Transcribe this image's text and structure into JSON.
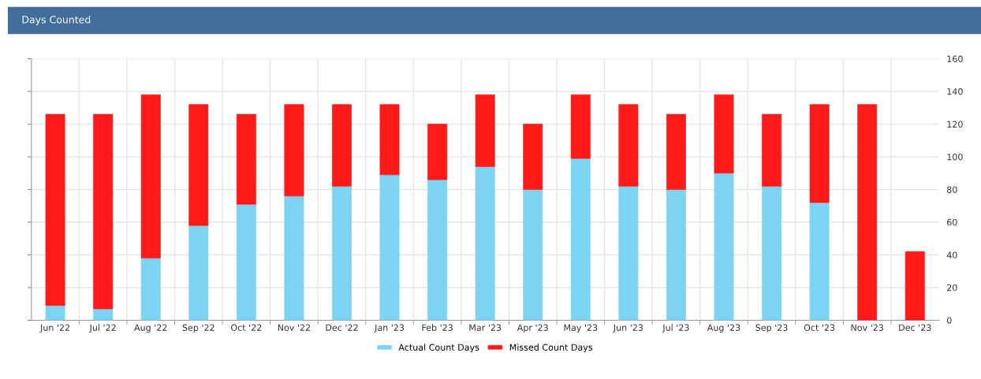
{
  "chart_data": {
    "type": "bar",
    "title": "Days Counted",
    "stacked": true,
    "categories": [
      "Jun '22",
      "Jul '22",
      "Aug '22",
      "Sep '22",
      "Oct '22",
      "Nov '22",
      "Dec '22",
      "Jan '23",
      "Feb '23",
      "Mar '23",
      "Apr '23",
      "May '23",
      "Jun '23",
      "Jul '23",
      "Aug '23",
      "Sep '23",
      "Oct '23",
      "Nov '23",
      "Dec '23"
    ],
    "series": [
      {
        "name": "Actual Count Days",
        "color": "#7dd4f2",
        "values": [
          9,
          7,
          38,
          58,
          71,
          76,
          82,
          89,
          86,
          94,
          80,
          99,
          82,
          80,
          90,
          82,
          72,
          0,
          0
        ]
      },
      {
        "name": "Missed Count Days",
        "color": "#ff1a1a",
        "values": [
          117,
          119,
          100,
          74,
          55,
          56,
          50,
          43,
          34,
          44,
          40,
          39,
          50,
          46,
          48,
          44,
          60,
          132,
          42
        ]
      }
    ],
    "ylim": [
      0,
      160
    ],
    "yticks": [
      0,
      20,
      40,
      60,
      80,
      100,
      120,
      140,
      160
    ],
    "grid": true,
    "legend": "bottom"
  }
}
